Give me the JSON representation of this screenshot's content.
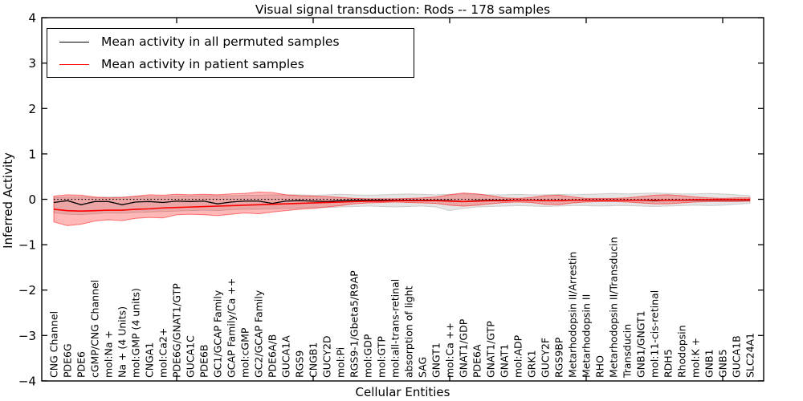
{
  "chart_data": {
    "type": "line",
    "title": "Visual signal transduction: Rods -- 178 samples",
    "xlabel": "Cellular Entities",
    "ylabel": "Inferred Activity",
    "ylim": [
      -4,
      4
    ],
    "yticks": [
      -4,
      -3,
      -2,
      -1,
      0,
      1,
      2,
      3,
      4
    ],
    "grid": false,
    "legend_position": "upper left",
    "baseline": {
      "value": 0,
      "style": "dotted",
      "color": "#000000"
    },
    "categories": [
      "CNG Channel",
      "PDE6G",
      "PDE6",
      "cGMP/CNG Channel",
      "mol:Na +",
      "Na + (4 Units)",
      "mol:GMP (4 units)",
      "CNGA1",
      "mol:Ca2+",
      "PDE6G/GNAT1/GTP",
      "GUCA1C",
      "PDE6B",
      "GC1/GCAP Family",
      "GCAP Family/Ca ++",
      "mol:cGMP",
      "GC2/GCAP Family",
      "PDE6A/B",
      "GUCA1A",
      "RGS9",
      "CNGB1",
      "GUCY2D",
      "mol:Pi",
      "RGS9-1/Gbeta5/R9AP",
      "mol:GDP",
      "mol:GTP",
      "mol:all-trans-retinal",
      "absorption of light",
      "SAG",
      "GNGT1",
      "mol:Ca ++",
      "GNAT1/GDP",
      "PDE6A",
      "GNAT1/GTP",
      "GNAT1",
      "mol:ADP",
      "GRK1",
      "GUCY2F",
      "RGS9BP",
      "Metarhodopsin II/Arrestin",
      "Metarhodopsin II",
      "RHO",
      "Metarhodopsin II/Transducin",
      "Transducin",
      "GNB1/GNGT1",
      "mol:11-cis-retinal",
      "RDH5",
      "Rhodopsin",
      "mol:K +",
      "GNB1",
      "GNB5",
      "GUCA1B",
      "SLC24A1"
    ],
    "series": [
      {
        "name": "Mean activity in all permuted samples",
        "color": "#000000",
        "style": "solid",
        "values": [
          -0.07,
          -0.03,
          -0.12,
          -0.05,
          -0.05,
          -0.12,
          -0.06,
          -0.05,
          -0.07,
          -0.04,
          -0.05,
          -0.04,
          -0.1,
          -0.06,
          -0.04,
          -0.04,
          -0.09,
          -0.04,
          -0.03,
          -0.04,
          -0.05,
          -0.03,
          -0.02,
          -0.02,
          -0.02,
          -0.02,
          -0.02,
          -0.02,
          -0.02,
          -0.03,
          -0.05,
          -0.03,
          -0.02,
          -0.02,
          -0.02,
          -0.02,
          -0.03,
          -0.03,
          -0.02,
          -0.02,
          -0.02,
          -0.02,
          -0.02,
          -0.02,
          -0.03,
          -0.02,
          -0.02,
          -0.02,
          -0.02,
          -0.02,
          -0.02,
          -0.02
        ]
      },
      {
        "name": "Mean activity in patient samples",
        "color": "#ff0000",
        "style": "solid",
        "values": [
          -0.22,
          -0.25,
          -0.26,
          -0.25,
          -0.24,
          -0.24,
          -0.22,
          -0.21,
          -0.19,
          -0.18,
          -0.17,
          -0.16,
          -0.15,
          -0.14,
          -0.13,
          -0.12,
          -0.11,
          -0.1,
          -0.09,
          -0.08,
          -0.07,
          -0.06,
          -0.05,
          -0.04,
          -0.04,
          -0.03,
          -0.03,
          -0.03,
          -0.03,
          -0.04,
          -0.05,
          -0.04,
          -0.03,
          -0.03,
          -0.02,
          -0.02,
          -0.03,
          -0.03,
          -0.02,
          -0.02,
          -0.02,
          -0.02,
          -0.02,
          -0.02,
          -0.02,
          -0.02,
          -0.02,
          -0.01,
          -0.01,
          -0.01,
          -0.01,
          -0.01
        ]
      }
    ],
    "bands": [
      {
        "name": "permuted samples activity range",
        "fill": "rgba(0,0,0,0.10)",
        "edge": "rgba(0,0,0,0.15)",
        "upper": [
          0.04,
          0.05,
          0.05,
          0.04,
          0.05,
          0.05,
          0.06,
          0.06,
          0.06,
          0.07,
          0.07,
          0.08,
          0.08,
          0.08,
          0.09,
          0.09,
          0.1,
          0.1,
          0.1,
          0.09,
          0.1,
          0.11,
          0.1,
          0.09,
          0.1,
          0.11,
          0.12,
          0.11,
          0.1,
          0.11,
          0.12,
          0.11,
          0.1,
          0.1,
          0.11,
          0.1,
          0.1,
          0.11,
          0.1,
          0.11,
          0.12,
          0.13,
          0.12,
          0.13,
          0.14,
          0.13,
          0.12,
          0.12,
          0.13,
          0.12,
          0.1,
          0.08
        ],
        "lower": [
          -0.3,
          -0.33,
          -0.34,
          -0.32,
          -0.3,
          -0.31,
          -0.29,
          -0.28,
          -0.27,
          -0.26,
          -0.25,
          -0.24,
          -0.25,
          -0.23,
          -0.22,
          -0.22,
          -0.21,
          -0.2,
          -0.19,
          -0.18,
          -0.18,
          -0.17,
          -0.16,
          -0.15,
          -0.16,
          -0.17,
          -0.16,
          -0.15,
          -0.17,
          -0.25,
          -0.2,
          -0.17,
          -0.16,
          -0.15,
          -0.14,
          -0.15,
          -0.16,
          -0.15,
          -0.14,
          -0.14,
          -0.15,
          -0.14,
          -0.14,
          -0.15,
          -0.16,
          -0.15,
          -0.14,
          -0.13,
          -0.14,
          -0.13,
          -0.11,
          -0.09
        ]
      },
      {
        "name": "patient samples activity range",
        "fill": "rgba(255,0,0,0.28)",
        "edge": "rgba(255,0,0,0.50)",
        "upper": [
          0.07,
          0.1,
          0.09,
          0.05,
          0.03,
          0.04,
          0.07,
          0.1,
          0.09,
          0.11,
          0.1,
          0.11,
          0.1,
          0.12,
          0.13,
          0.16,
          0.15,
          0.1,
          0.08,
          0.07,
          0.06,
          0.04,
          0.02,
          0.01,
          0.01,
          0.01,
          0.02,
          0.03,
          0.05,
          0.1,
          0.14,
          0.12,
          0.08,
          0.03,
          0.02,
          0.04,
          0.08,
          0.09,
          0.05,
          0.02,
          0.02,
          0.02,
          0.03,
          0.06,
          0.09,
          0.1,
          0.08,
          0.05,
          0.03,
          0.02,
          0.03,
          0.03
        ],
        "lower": [
          -0.5,
          -0.58,
          -0.55,
          -0.48,
          -0.45,
          -0.47,
          -0.42,
          -0.4,
          -0.41,
          -0.34,
          -0.33,
          -0.34,
          -0.36,
          -0.33,
          -0.3,
          -0.32,
          -0.28,
          -0.25,
          -0.22,
          -0.2,
          -0.17,
          -0.14,
          -0.1,
          -0.08,
          -0.07,
          -0.06,
          -0.07,
          -0.08,
          -0.09,
          -0.13,
          -0.15,
          -0.13,
          -0.1,
          -0.07,
          -0.06,
          -0.07,
          -0.11,
          -0.12,
          -0.08,
          -0.06,
          -0.05,
          -0.05,
          -0.06,
          -0.08,
          -0.1,
          -0.1,
          -0.08,
          -0.06,
          -0.05,
          -0.05,
          -0.05,
          -0.04
        ]
      }
    ]
  }
}
